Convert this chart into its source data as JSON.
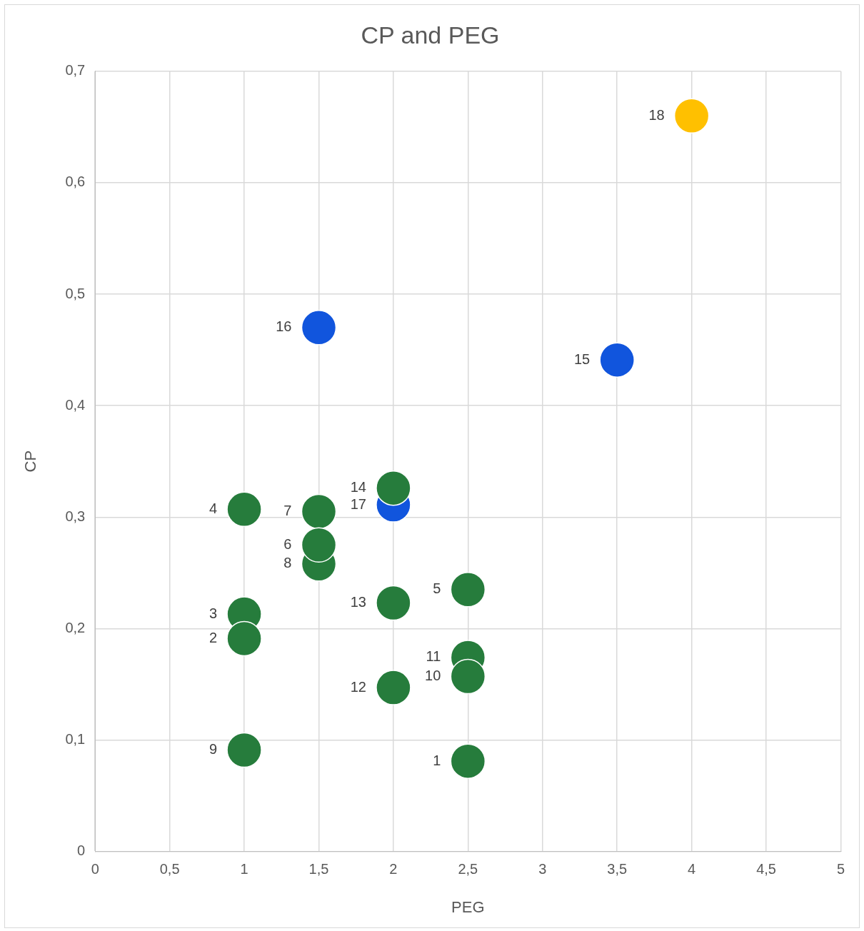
{
  "chart_data": {
    "type": "scatter",
    "title": "CP and PEG",
    "xlabel": "PEG",
    "ylabel": "CP",
    "series": [
      {
        "name": "1",
        "color": "#267c3c",
        "x": [
          2.5
        ],
        "values": [
          0.081
        ]
      },
      {
        "name": "2",
        "color": "#267c3c",
        "x": [
          1
        ],
        "values": [
          0.191
        ]
      },
      {
        "name": "3",
        "color": "#267c3c",
        "x": [
          1
        ],
        "values": [
          0.213
        ]
      },
      {
        "name": "4",
        "color": "#267c3c",
        "x": [
          1
        ],
        "values": [
          0.307
        ]
      },
      {
        "name": "5",
        "color": "#267c3c",
        "x": [
          2.5
        ],
        "values": [
          0.235
        ]
      },
      {
        "name": "6",
        "color": "#267c3c",
        "x": [
          1.5
        ],
        "values": [
          0.275
        ]
      },
      {
        "name": "7",
        "color": "#267c3c",
        "x": [
          1.5
        ],
        "values": [
          0.305
        ]
      },
      {
        "name": "8",
        "color": "#267c3c",
        "x": [
          1.5
        ],
        "values": [
          0.258
        ]
      },
      {
        "name": "9",
        "color": "#267c3c",
        "x": [
          1
        ],
        "values": [
          0.091
        ]
      },
      {
        "name": "10",
        "color": "#267c3c",
        "x": [
          2.5
        ],
        "values": [
          0.157
        ]
      },
      {
        "name": "11",
        "color": "#267c3c",
        "x": [
          2.5
        ],
        "values": [
          0.174
        ]
      },
      {
        "name": "12",
        "color": "#267c3c",
        "x": [
          2
        ],
        "values": [
          0.147
        ]
      },
      {
        "name": "13",
        "color": "#267c3c",
        "x": [
          2
        ],
        "values": [
          0.223
        ]
      },
      {
        "name": "14",
        "color": "#267c3c",
        "x": [
          2
        ],
        "values": [
          0.326
        ]
      },
      {
        "name": "15",
        "color": "#1155dd",
        "x": [
          3.5
        ],
        "values": [
          0.441
        ]
      },
      {
        "name": "16",
        "color": "#1155dd",
        "x": [
          1.5
        ],
        "values": [
          0.47
        ]
      },
      {
        "name": "17",
        "color": "#1155dd",
        "x": [
          2
        ],
        "values": [
          0.311
        ]
      },
      {
        "name": "18",
        "color": "#ffc000",
        "x": [
          4
        ],
        "values": [
          0.66
        ]
      }
    ],
    "xlim": [
      0,
      5
    ],
    "xticks": [
      0,
      {
        "value": 0.5,
        "label": "0,5"
      },
      1,
      {
        "value": 1.5,
        "label": "1,5"
      },
      2,
      {
        "value": 2.5,
        "label": "2,5"
      },
      3,
      {
        "value": 3.5,
        "label": "3,5"
      },
      4,
      {
        "value": 4.5,
        "label": "4,5"
      },
      5
    ],
    "ylim": [
      0,
      0.7
    ],
    "yticks": [
      0,
      {
        "value": 0.1,
        "label": "0,1"
      },
      {
        "value": 0.2,
        "label": "0,2"
      },
      {
        "value": 0.3,
        "label": "0,3"
      },
      {
        "value": 0.4,
        "label": "0,4"
      },
      {
        "value": 0.5,
        "label": "0,5"
      },
      {
        "value": 0.6,
        "label": "0,6"
      },
      {
        "value": 0.7,
        "label": "0,7"
      }
    ],
    "grid": true,
    "marker": "circle",
    "legend": false
  }
}
